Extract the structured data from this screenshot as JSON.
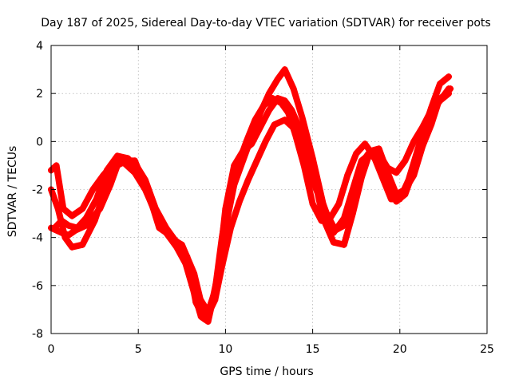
{
  "chart_data": {
    "type": "scatter",
    "title": "Day 187 of 2025, Sidereal Day-to-day VTEC variation (SDTVAR) for receiver pots",
    "xlabel": "GPS time / hours",
    "ylabel": "SDTVAR / TECUs",
    "xlim": [
      0,
      25
    ],
    "ylim": [
      -8,
      4
    ],
    "xticks": [
      "0",
      "5",
      "10",
      "15",
      "20",
      "25"
    ],
    "yticks": [
      "-8",
      "-6",
      "-4",
      "-2",
      "0",
      "2",
      "4"
    ],
    "grid": true,
    "legend": "none",
    "marker": "plus",
    "color": "#ff0000",
    "series": [
      {
        "x": [
          0.0,
          0.3,
          0.6,
          1.0,
          1.4,
          2.0,
          2.8,
          3.4,
          3.8,
          4.3,
          4.8,
          5.2,
          5.7,
          6.2,
          6.8,
          7.5,
          8.2,
          8.6,
          9.0,
          9.4,
          9.8,
          10.3,
          10.8,
          11.3,
          11.8,
          12.3,
          12.8,
          13.4,
          14.0,
          14.6,
          15.2,
          15.8,
          16.3,
          16.8,
          17.3,
          17.8,
          18.3,
          18.8,
          19.3,
          19.8,
          20.3,
          20.8,
          21.3,
          21.8,
          22.3,
          22.8
        ],
        "y": [
          -3.6,
          -3.7,
          -3.8,
          -3.9,
          -3.7,
          -3.5,
          -2.8,
          -1.8,
          -1.0,
          -0.8,
          -0.8,
          -1.5,
          -2.5,
          -3.4,
          -4.0,
          -4.3,
          -5.5,
          -6.7,
          -7.2,
          -6.6,
          -5.2,
          -3.6,
          -2.5,
          -1.6,
          -0.8,
          0.0,
          0.7,
          0.9,
          0.5,
          -0.8,
          -2.0,
          -3.0,
          -3.7,
          -3.5,
          -2.2,
          -0.9,
          -0.4,
          -0.5,
          -1.1,
          -1.3,
          -0.8,
          0.0,
          0.6,
          1.3,
          1.7,
          2.0
        ]
      },
      {
        "x": [
          0.0,
          0.4,
          0.8,
          1.2,
          1.8,
          2.5,
          3.2,
          3.8,
          4.3,
          4.8,
          5.4,
          6.0,
          6.6,
          7.2,
          7.8,
          8.3,
          8.8,
          9.2,
          9.6,
          10.0,
          10.5,
          11.0,
          11.5,
          12.0,
          12.5,
          13.0,
          13.4,
          13.8,
          14.4,
          15.0,
          15.6,
          16.2,
          16.8,
          17.3,
          17.8,
          18.3,
          18.8,
          19.3,
          19.8,
          20.3,
          20.8,
          21.3,
          21.8,
          22.2,
          22.8
        ],
        "y": [
          -2.0,
          -2.8,
          -4.0,
          -4.4,
          -4.3,
          -3.3,
          -1.8,
          -0.8,
          -0.8,
          -0.9,
          -1.6,
          -2.8,
          -3.6,
          -4.2,
          -4.8,
          -6.7,
          -7.4,
          -6.8,
          -5.4,
          -2.8,
          -1.0,
          -0.4,
          -0.1,
          0.6,
          1.3,
          1.8,
          1.7,
          1.3,
          0.3,
          -1.2,
          -3.2,
          -4.2,
          -4.3,
          -3.0,
          -1.5,
          -0.4,
          -0.3,
          -1.3,
          -2.2,
          -2.0,
          -1.4,
          -0.2,
          0.7,
          1.6,
          2.2
        ]
      },
      {
        "x": [
          0.0,
          0.3,
          0.7,
          1.2,
          1.8,
          2.4,
          3.0,
          3.6,
          4.2,
          4.8,
          5.4,
          6.0,
          6.6,
          7.2,
          7.8,
          8.4,
          9.0,
          9.5,
          10.0,
          10.5,
          11.0,
          11.5,
          12.0,
          12.5,
          13.0,
          13.4,
          13.9,
          14.4,
          15.0,
          15.6,
          16.2,
          16.8,
          17.3,
          17.8,
          18.3,
          18.8,
          19.3,
          19.8,
          20.3,
          20.8,
          21.3,
          21.8,
          22.3,
          22.8
        ],
        "y": [
          -1.2,
          -1.0,
          -2.8,
          -3.1,
          -2.8,
          -2.0,
          -1.4,
          -0.9,
          -0.9,
          -1.3,
          -2.0,
          -3.0,
          -3.8,
          -4.4,
          -5.2,
          -6.4,
          -7.1,
          -6.0,
          -3.6,
          -1.8,
          -0.8,
          0.2,
          1.2,
          2.0,
          2.6,
          3.0,
          2.2,
          1.0,
          -0.7,
          -2.6,
          -3.8,
          -3.2,
          -2.0,
          -0.8,
          -0.5,
          -0.9,
          -1.8,
          -2.5,
          -2.2,
          -1.2,
          0.3,
          1.4,
          2.4,
          2.7
        ]
      },
      {
        "x": [
          0.2,
          0.6,
          1.0,
          1.5,
          2.0,
          2.6,
          3.2,
          3.8,
          4.4,
          5.0,
          5.6,
          6.2,
          6.8,
          7.4,
          8.0,
          8.6,
          9.0,
          9.4,
          9.8,
          10.2,
          10.7,
          11.2,
          11.7,
          12.2,
          12.7,
          13.2,
          13.6,
          14.0,
          14.5,
          15.0,
          15.5,
          16.0,
          16.5,
          17.0,
          17.5,
          18.0,
          18.5,
          19.0,
          19.5,
          20.0,
          20.5,
          21.0,
          21.5,
          22.0,
          22.5,
          22.9
        ],
        "y": [
          -3.6,
          -3.3,
          -3.5,
          -3.6,
          -3.2,
          -2.4,
          -1.2,
          -0.6,
          -0.7,
          -1.2,
          -2.2,
          -3.6,
          -3.9,
          -4.3,
          -5.8,
          -7.3,
          -7.5,
          -6.2,
          -4.0,
          -2.2,
          -1.0,
          0.0,
          0.9,
          1.5,
          1.8,
          1.6,
          1.2,
          0.3,
          -1.0,
          -2.6,
          -3.3,
          -3.2,
          -2.6,
          -1.4,
          -0.5,
          -0.1,
          -0.6,
          -1.5,
          -2.4,
          -2.4,
          -1.6,
          -0.4,
          0.8,
          1.6,
          1.9,
          2.2
        ]
      }
    ]
  }
}
